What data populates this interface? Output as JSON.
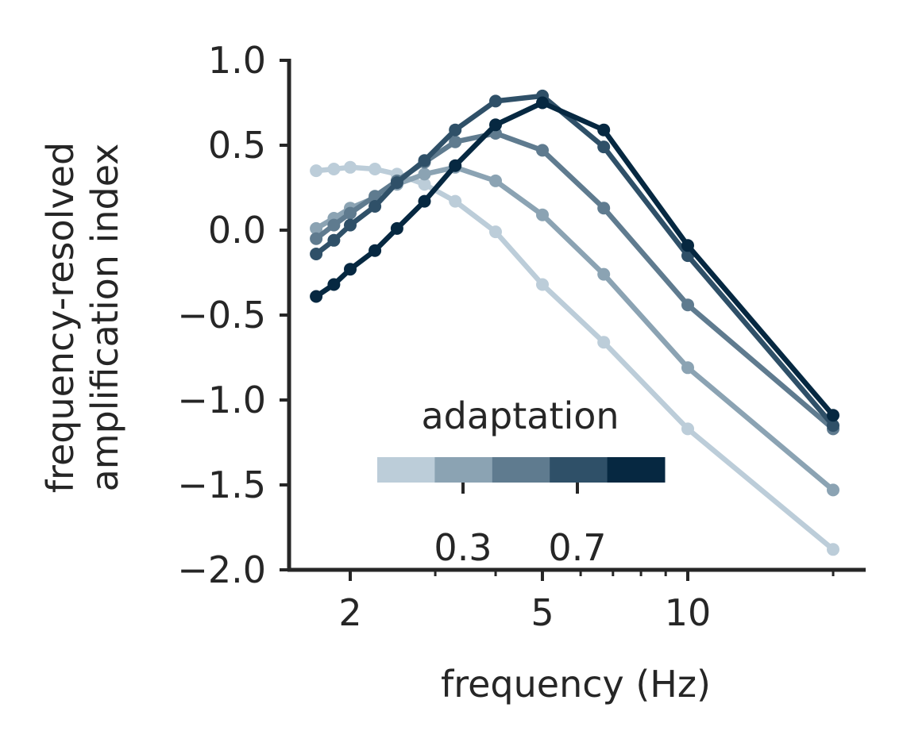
{
  "chart_data": {
    "type": "line",
    "xscale": "log",
    "xlabel": "frequency (Hz)",
    "ylabel": [
      "frequency-resolved",
      "amplification index"
    ],
    "xticks": [
      2,
      5,
      10
    ],
    "xtick_labels": [
      "2",
      "5",
      "10"
    ],
    "yticks": [
      1.0,
      0.5,
      0.0,
      -0.5,
      -1.0,
      -1.5,
      -2.0
    ],
    "ytick_labels": [
      "1.0",
      "0.5",
      "0.0",
      "−0.5",
      "−1.0",
      "−1.5",
      "−2.0"
    ],
    "ylim": [
      -2.0,
      1.0
    ],
    "xlim": [
      1.6,
      24
    ],
    "grid": false,
    "x": [
      1.7,
      1.85,
      2.0,
      2.25,
      2.5,
      2.85,
      3.3,
      4.0,
      5.0,
      6.7,
      10.0,
      20.0
    ],
    "series": [
      {
        "color": "#bccdd9",
        "values": [
          0.35,
          0.36,
          0.37,
          0.36,
          0.33,
          0.27,
          0.17,
          -0.01,
          -0.32,
          -0.66,
          -1.17,
          -1.88
        ]
      },
      {
        "color": "#8ba3b3",
        "values": [
          0.01,
          0.07,
          0.13,
          0.19,
          0.27,
          0.33,
          0.37,
          0.29,
          0.09,
          -0.26,
          -0.81,
          -1.53
        ]
      },
      {
        "color": "#5f7b8f",
        "values": [
          -0.05,
          0.03,
          0.1,
          0.2,
          0.29,
          0.4,
          0.52,
          0.57,
          0.47,
          0.13,
          -0.44,
          -1.17
        ]
      },
      {
        "color": "#2f5068",
        "values": [
          -0.14,
          -0.06,
          0.03,
          0.14,
          0.28,
          0.41,
          0.59,
          0.76,
          0.79,
          0.49,
          -0.15,
          -1.15
        ]
      },
      {
        "color": "#062841",
        "values": [
          -0.39,
          -0.32,
          -0.23,
          -0.12,
          0.01,
          0.17,
          0.38,
          0.62,
          0.75,
          0.59,
          -0.09,
          -1.09
        ]
      }
    ],
    "legend": {
      "title": "adaptation",
      "placement": "lower-center",
      "colors": [
        "#bccdd9",
        "#8ba3b3",
        "#5f7b8f",
        "#2f5068",
        "#062841"
      ],
      "tick_labels": [
        "0.3",
        "0.7"
      ]
    }
  }
}
